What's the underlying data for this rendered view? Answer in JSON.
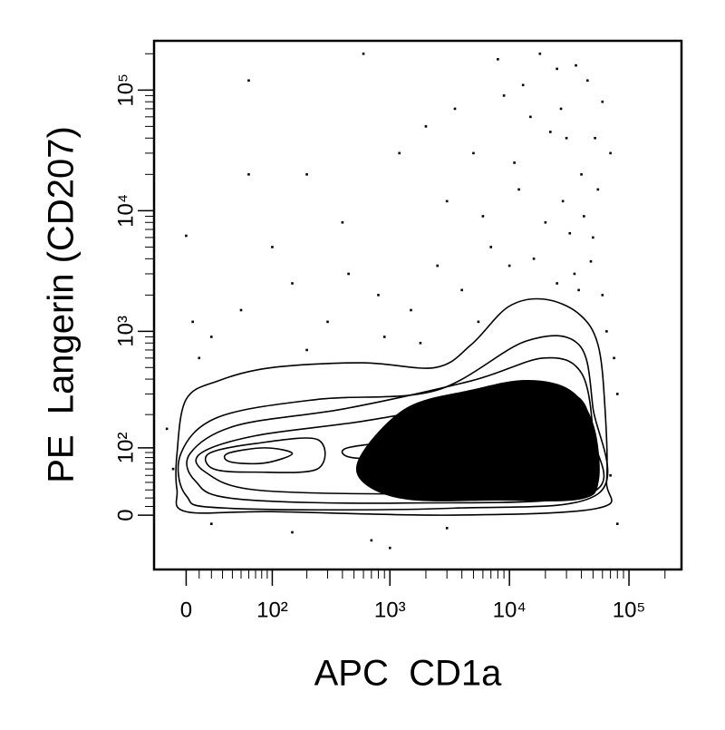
{
  "chart_data": {
    "type": "contour",
    "xlabel": "APC  CD1a",
    "ylabel": "PE  Langerin (CD207)",
    "xscale": "arcsinh",
    "yscale": "arcsinh",
    "xlim": [
      -26,
      275000
    ],
    "ylim": [
      -74,
      256000
    ],
    "xticks": [
      0,
      {
        "value": 100,
        "label": "10²"
      },
      {
        "value": 1000,
        "label": "10³"
      },
      {
        "value": 10000,
        "label": "10⁴"
      },
      {
        "value": 100000,
        "label": "10⁵"
      }
    ],
    "yticks": [
      0,
      {
        "value": 100,
        "label": "10²"
      },
      {
        "value": 1000,
        "label": "10³"
      },
      {
        "value": 10000,
        "label": "10⁴"
      },
      {
        "value": 100000,
        "label": "10⁵"
      }
    ],
    "color": "#000000",
    "density_region": {
      "x": [
        590,
        1400,
        4800,
        13800,
        32000,
        50000,
        55000,
        38000,
        8000,
        1400,
        590
      ],
      "y": [
        88,
        227,
        320,
        387,
        320,
        160,
        42,
        19,
        18,
        19,
        42
      ]
    },
    "contours": [
      {
        "x": [
          -7,
          0,
          26,
          100,
          590,
          2400,
          4800,
          9800,
          19400,
          38000,
          55000,
          63000,
          65000,
          55000,
          3400,
          100,
          0,
          -7
        ],
        "y": [
          88,
          270,
          387,
          500,
          548,
          500,
          777,
          1600,
          1850,
          1400,
          777,
          227,
          42,
          8,
          0,
          4,
          4,
          30
        ]
      },
      {
        "x": [
          -4,
          26,
          246,
          2400,
          13800,
          38000,
          50000,
          55000,
          3400,
          35,
          0
        ],
        "y": [
          88,
          190,
          270,
          320,
          830,
          777,
          227,
          25,
          8,
          8,
          23
        ]
      },
      {
        "x": [
          3,
          44,
          440,
          4800,
          19400,
          40000,
          50000,
          46000,
          1400,
          44,
          7
        ],
        "y": [
          88,
          160,
          227,
          387,
          600,
          450,
          130,
          25,
          14,
          19,
          42
        ]
      },
      {
        "x": [
          11,
          70,
          590,
          6800,
          27000,
          46000,
          38000,
          1400,
          70,
          15
        ],
        "y": [
          88,
          130,
          175,
          270,
          320,
          190,
          30,
          25,
          30,
          55
        ]
      },
      {
        "x": [
          18,
          70,
          246,
          246,
          70,
          22
        ],
        "y": [
          88,
          110,
          120,
          60,
          55,
          60
        ]
      },
      {
        "x": [
          35,
          85,
          150,
          85,
          38
        ],
        "y": [
          88,
          100,
          88,
          70,
          72
        ]
      },
      {
        "x": [
          440,
          1400,
          3400,
          1400,
          480
        ],
        "y": [
          100,
          115,
          105,
          80,
          80
        ]
      }
    ],
    "points": {
      "x": [
        60,
        0,
        25000,
        9000,
        15000,
        30000,
        5000,
        40000,
        12000,
        20000,
        3000,
        7000,
        50000,
        35000,
        25000,
        60000,
        10000,
        4000,
        1500,
        800,
        300,
        150,
        50,
        20,
        2000,
        1200,
        600,
        400,
        200,
        100,
        45000,
        60000,
        70000,
        18000,
        8000,
        28000,
        16000,
        42000,
        55000,
        22000,
        3500,
        11000,
        6000,
        32000,
        48000,
        38000,
        2500,
        900,
        1800,
        5500,
        65000,
        75000,
        80000,
        70000,
        80000,
        700,
        150,
        1000,
        3000,
        20,
        60,
        10,
        -10,
        -15,
        5,
        200,
        450,
        13000,
        27000,
        36000,
        52000
      ],
      "y": [
        120000,
        6200,
        150000,
        90000,
        60000,
        40000,
        30000,
        20000,
        15000,
        8000,
        12000,
        5000,
        6000,
        3000,
        2500,
        2000,
        3500,
        2200,
        1500,
        2000,
        1200,
        2500,
        1500,
        900,
        50000,
        30000,
        200000,
        8000,
        20000,
        5000,
        120000,
        80000,
        30000,
        200000,
        180000,
        12000,
        4000,
        9000,
        15000,
        45000,
        70000,
        25000,
        9000,
        6500,
        3800,
        2200,
        3500,
        900,
        800,
        1200,
        1000,
        600,
        300,
        50,
        -10,
        -30,
        -20,
        -40,
        -15,
        -10,
        20000,
        600,
        60,
        150,
        1200,
        700,
        3000,
        110000,
        70000,
        160000,
        40000
      ]
    }
  }
}
